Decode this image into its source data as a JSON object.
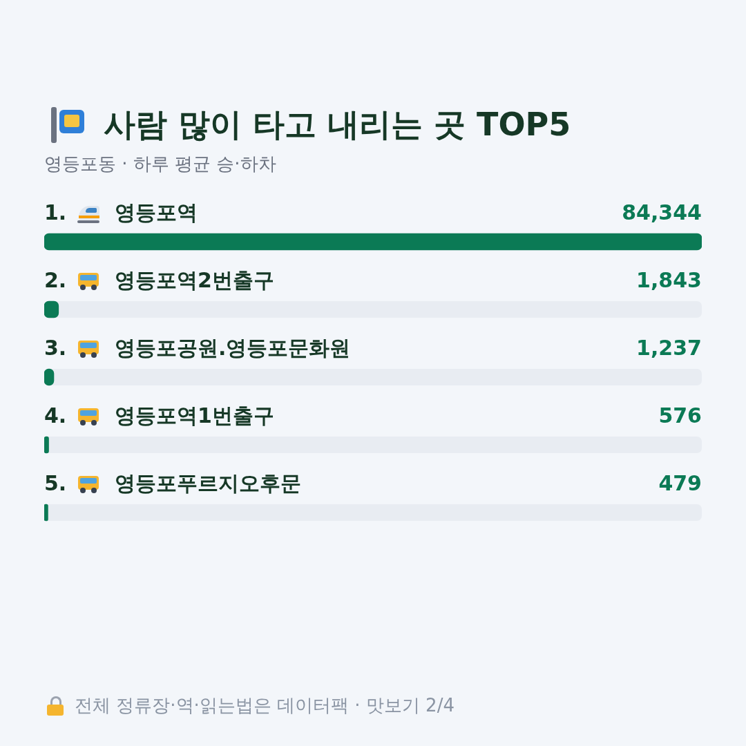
{
  "chart_data": {
    "type": "bar",
    "orientation": "horizontal",
    "title": "사람 많이 타고 내리는 곳 TOP5",
    "subtitle": "영등포동 · 하루 평균 승·하차",
    "categories": [
      "영등포역",
      "영등포역2번출구",
      "영등포공원.영등포문화원",
      "영등포역1번출구",
      "영등포푸르지오후문"
    ],
    "values": [
      84344,
      1843,
      1237,
      576,
      479
    ],
    "value_labels": [
      "84,344",
      "1,843",
      "1,237",
      "576",
      "479"
    ],
    "color": "#0b7a55",
    "legend": false,
    "tick_labels": false,
    "annotations": [
      "1.",
      "2.",
      "3.",
      "4.",
      "5.",
      "전체 정류장·역·읽는법은 데이터팩 · 맛보기 2/4"
    ]
  }
}
